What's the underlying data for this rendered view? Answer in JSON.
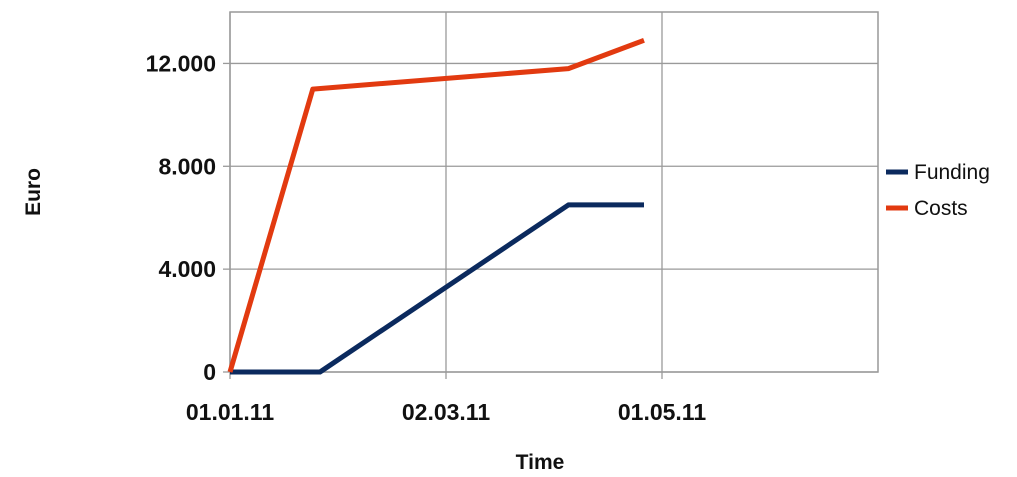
{
  "chart_data": {
    "type": "line",
    "title": "",
    "xlabel": "Time",
    "ylabel": "Euro",
    "x_ticks": [
      "01.01.11",
      "02.03.11",
      "01.05.11"
    ],
    "x_range": [
      "01.01.11",
      "30.06.11"
    ],
    "y_ticks": [
      "0",
      "4.000",
      "8.000",
      "12.000"
    ],
    "ylim": [
      0,
      14000
    ],
    "grid": true,
    "legend_position": "right",
    "series": [
      {
        "name": "Funding",
        "color": "#0b2a5e",
        "points": [
          {
            "x": "01.01.11",
            "y": 0
          },
          {
            "x": "26.01.11",
            "y": 0
          },
          {
            "x": "05.04.11",
            "y": 6500
          },
          {
            "x": "26.04.11",
            "y": 6500
          }
        ]
      },
      {
        "name": "Costs",
        "color": "#e23a10",
        "points": [
          {
            "x": "01.01.11",
            "y": 0
          },
          {
            "x": "24.01.11",
            "y": 11000
          },
          {
            "x": "05.04.11",
            "y": 11800
          },
          {
            "x": "26.04.11",
            "y": 12900
          }
        ]
      }
    ]
  }
}
